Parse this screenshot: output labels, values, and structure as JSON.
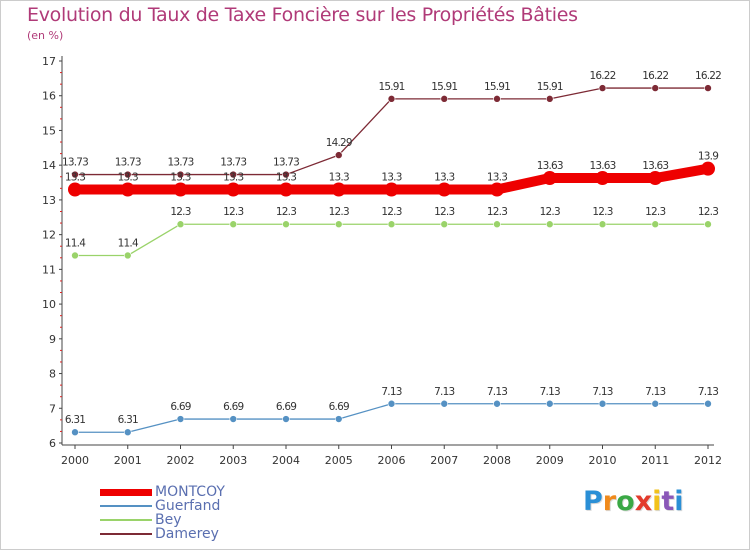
{
  "chart_data": {
    "type": "line",
    "title": "Evolution du Taux de Taxe Foncière sur les Propriétés Bâties",
    "subtitle": "(en %)",
    "categories": [
      "2000",
      "2001",
      "2002",
      "2003",
      "2004",
      "2005",
      "2006",
      "2007",
      "2008",
      "2009",
      "2010",
      "2011",
      "2012"
    ],
    "ylim": [
      6,
      17
    ],
    "yticks": [
      6,
      7,
      8,
      9,
      10,
      11,
      12,
      13,
      14,
      15,
      16,
      17
    ],
    "grid": false,
    "series": [
      {
        "name": "MONTCOY",
        "color": "#ee0000",
        "values": [
          13.3,
          13.3,
          13.3,
          13.3,
          13.3,
          13.3,
          13.3,
          13.3,
          13.3,
          13.63,
          13.63,
          13.63,
          13.9
        ],
        "labels": [
          "13.3",
          "13.3",
          "13.3",
          "13.3",
          "13.3",
          "13.3",
          "13.3",
          "13.3",
          "13.3",
          "13.63",
          "13.63",
          "13.63",
          "13.9"
        ]
      },
      {
        "name": "Guerfand",
        "color": "#5591c3",
        "values": [
          6.31,
          6.31,
          6.69,
          6.69,
          6.69,
          6.69,
          7.13,
          7.13,
          7.13,
          7.13,
          7.13,
          7.13,
          7.13
        ],
        "labels": [
          "6.31",
          "6.31",
          "6.69",
          "6.69",
          "6.69",
          "6.69",
          "7.13",
          "7.13",
          "7.13",
          "7.13",
          "7.13",
          "7.13",
          "7.13"
        ]
      },
      {
        "name": "Bey",
        "color": "#9ad36a",
        "values": [
          11.4,
          11.4,
          12.3,
          12.3,
          12.3,
          12.3,
          12.3,
          12.3,
          12.3,
          12.3,
          12.3,
          12.3,
          12.3
        ],
        "labels": [
          "11.4",
          "11.4",
          "12.3",
          "12.3",
          "12.3",
          "12.3",
          "12.3",
          "12.3",
          "12.3",
          "12.3",
          "12.3",
          "12.3",
          "12.3"
        ]
      },
      {
        "name": "Damerey",
        "color": "#7d2a35",
        "values": [
          13.73,
          13.73,
          13.73,
          13.73,
          13.73,
          14.29,
          15.91,
          15.91,
          15.91,
          15.91,
          16.22,
          16.22,
          16.22
        ],
        "labels": [
          "13.73",
          "13.73",
          "13.73",
          "13.73",
          "13.73",
          "14.29",
          "15.91",
          "15.91",
          "15.91",
          "15.91",
          "16.22",
          "16.22",
          "16.22"
        ]
      }
    ],
    "legend_position": "bottom-left"
  },
  "brand": {
    "letters": [
      "P",
      "r",
      "o",
      "x",
      "i",
      "t",
      "i"
    ],
    "colors": [
      "#2a8fd6",
      "#f08a1c",
      "#3aa845",
      "#e33b2c",
      "#f2c21b",
      "#8a57b8",
      "#2a8fd6"
    ]
  }
}
